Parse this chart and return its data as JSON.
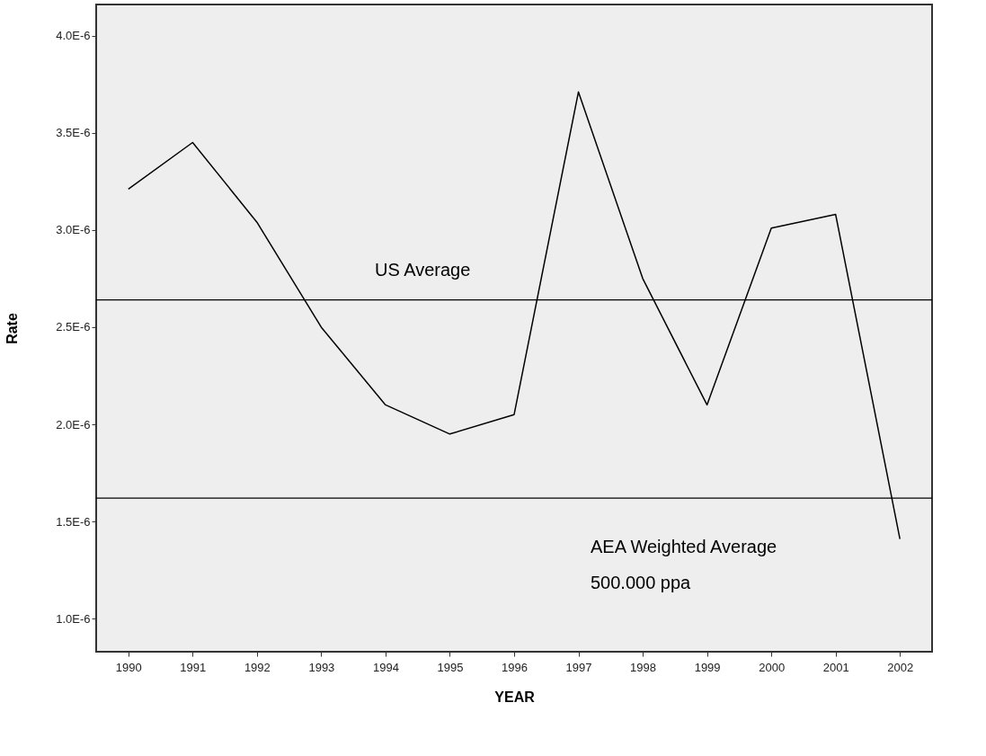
{
  "chart_data": {
    "type": "line",
    "xlabel": "YEAR",
    "ylabel": "Rate",
    "categories": [
      "1990",
      "1991",
      "1992",
      "1993",
      "1994",
      "1995",
      "1996",
      "1997",
      "1998",
      "1999",
      "2000",
      "2001",
      "2002"
    ],
    "series": [
      {
        "color": "#000000",
        "values": [
          3.21e-06,
          3.45e-06,
          3.04e-06,
          2.5e-06,
          2.1e-06,
          1.95e-06,
          2.05e-06,
          3.71e-06,
          2.75e-06,
          2.1e-06,
          3.01e-06,
          3.08e-06,
          1.41e-06
        ]
      }
    ],
    "ylim": [
      8.3e-07,
      4.16e-06
    ],
    "yticks": [
      {
        "value": 1e-06,
        "label": "1.0E-6"
      },
      {
        "value": 1.5e-06,
        "label": "1.5E-6"
      },
      {
        "value": 2e-06,
        "label": "2.0E-6"
      },
      {
        "value": 2.5e-06,
        "label": "2.5E-6"
      },
      {
        "value": 3e-06,
        "label": "3.0E-6"
      },
      {
        "value": 3.5e-06,
        "label": "3.5E-6"
      },
      {
        "value": 4e-06,
        "label": "4.0E-6"
      }
    ],
    "ref_lines": [
      {
        "axis": "y",
        "value": 2.64e-06,
        "label": "US Average",
        "color": "#000000"
      },
      {
        "axis": "y",
        "value": 1.62e-06,
        "label": "AEA Weighted Average\n500.000 ppa",
        "color": "#000000"
      }
    ],
    "grid": false,
    "marker": "none",
    "line_style": "solid"
  }
}
